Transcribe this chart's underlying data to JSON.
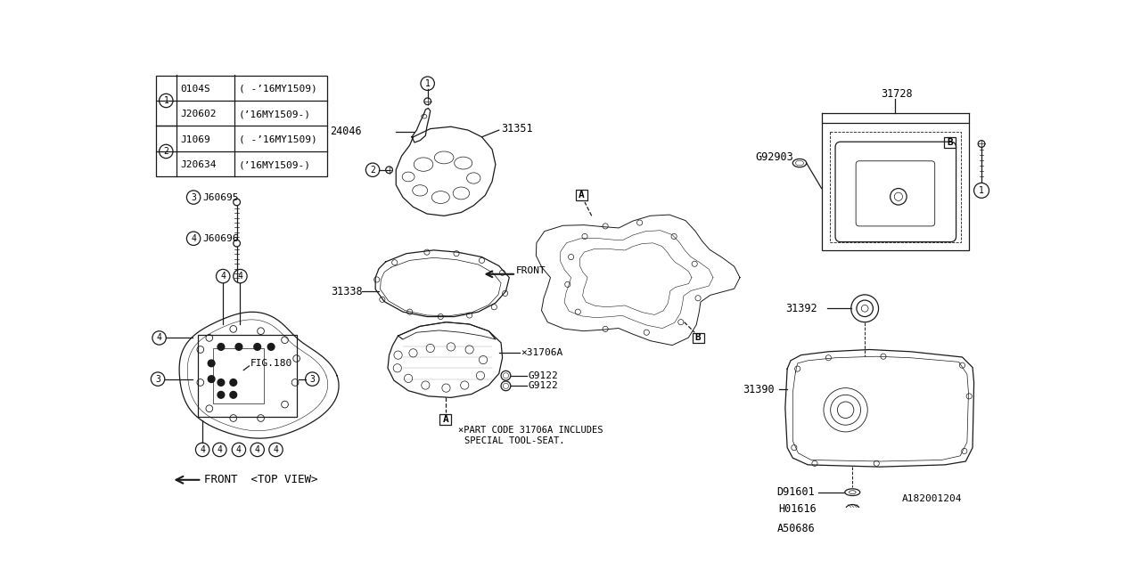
{
  "bg_color": "#ffffff",
  "line_color": "#1a1a1a",
  "part_number": "A182001204",
  "table": {
    "circle1_parts": [
      [
        "0104S",
        "( -’16MY1509)"
      ],
      [
        "J20602",
        "(’16MY1509-)"
      ]
    ],
    "circle2_parts": [
      [
        "J1069",
        "( -’16MY1509)"
      ],
      [
        "J20634",
        "(’16MY1509-)"
      ]
    ]
  }
}
